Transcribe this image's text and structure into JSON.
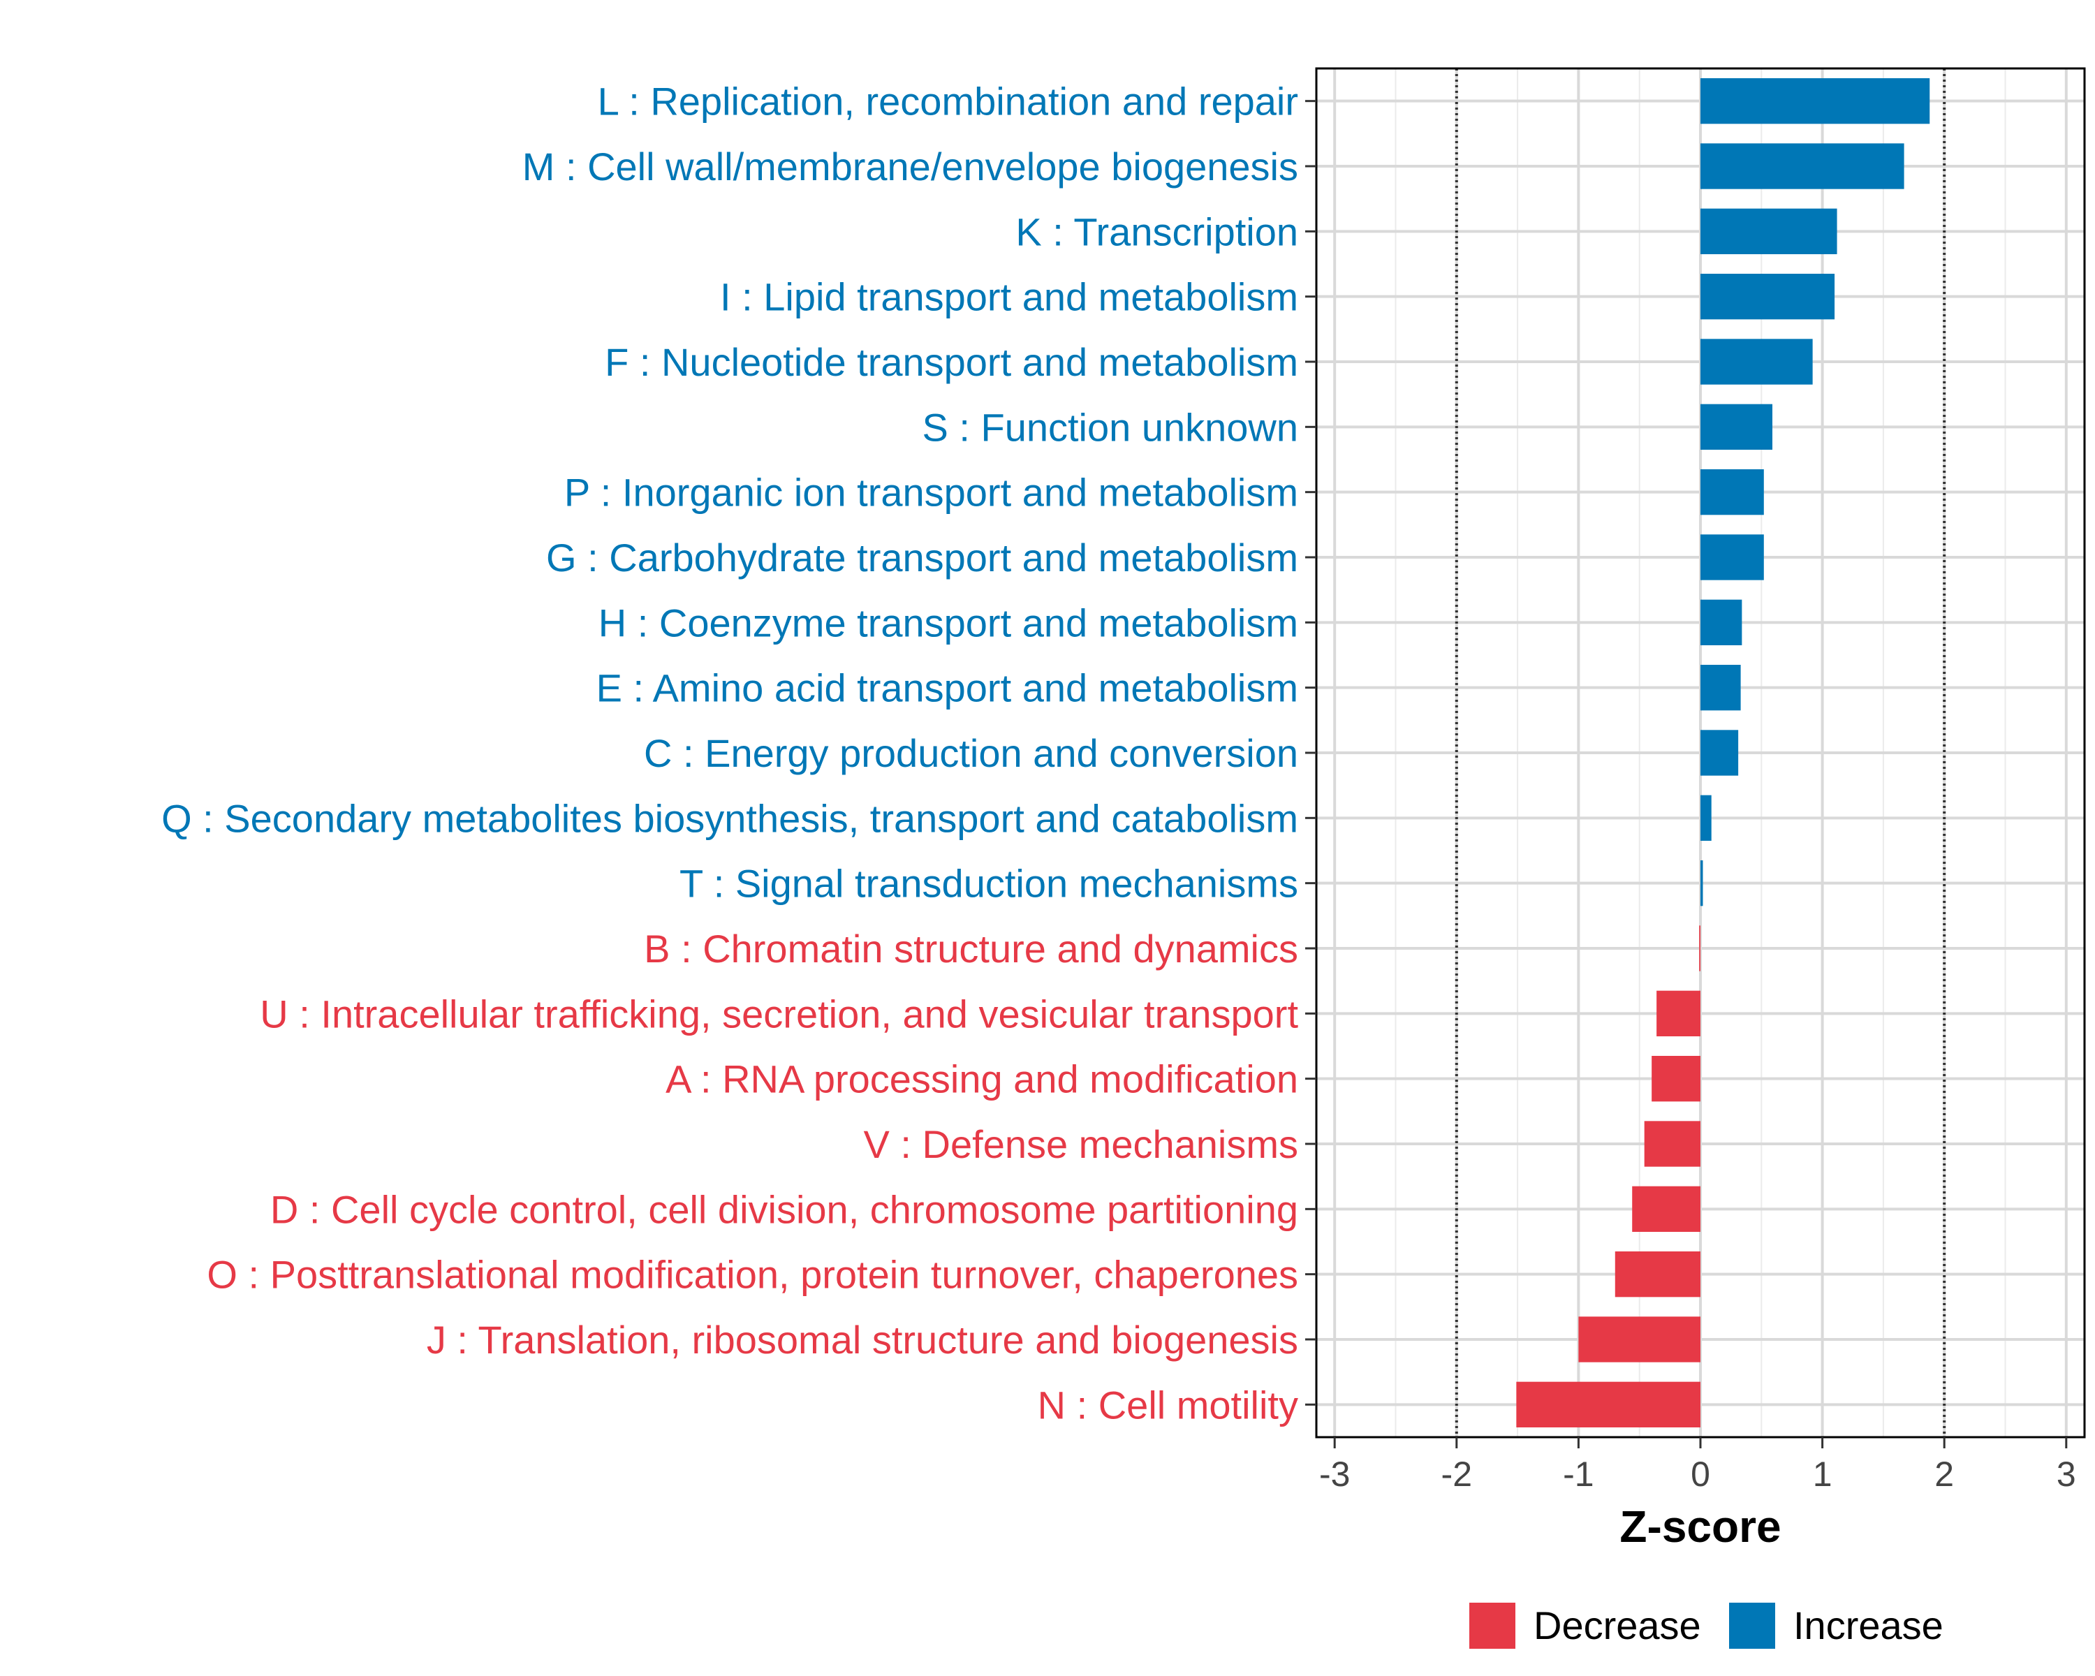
{
  "chart_data": {
    "type": "bar",
    "orientation": "horizontal",
    "categories": [
      "L : Replication, recombination and repair",
      "M : Cell wall/membrane/envelope biogenesis",
      "K : Transcription",
      "I : Lipid transport and metabolism",
      "F : Nucleotide transport and metabolism",
      "S : Function unknown",
      "P : Inorganic ion transport and metabolism",
      "G : Carbohydrate transport and metabolism",
      "H : Coenzyme transport and metabolism",
      "E : Amino acid transport and metabolism",
      "C : Energy production and conversion",
      "Q : Secondary metabolites biosynthesis, transport and catabolism",
      "T : Signal transduction mechanisms",
      "B : Chromatin structure and dynamics",
      "U : Intracellular trafficking, secretion, and vesicular transport",
      "A : RNA processing and modification",
      "V : Defense mechanisms",
      "D : Cell cycle control, cell division, chromosome partitioning",
      "O : Posttranslational modification, protein turnover, chaperones",
      "J : Translation, ribosomal structure and biogenesis",
      "N : Cell motility"
    ],
    "values": [
      1.88,
      1.67,
      1.12,
      1.1,
      0.92,
      0.59,
      0.52,
      0.52,
      0.34,
      0.33,
      0.31,
      0.09,
      0.02,
      -0.01,
      -0.36,
      -0.4,
      -0.46,
      -0.56,
      -0.7,
      -1.0,
      -1.51
    ],
    "groups": [
      "Increase",
      "Increase",
      "Increase",
      "Increase",
      "Increase",
      "Increase",
      "Increase",
      "Increase",
      "Increase",
      "Increase",
      "Increase",
      "Increase",
      "Increase",
      "Decrease",
      "Decrease",
      "Decrease",
      "Decrease",
      "Decrease",
      "Decrease",
      "Decrease",
      "Decrease"
    ],
    "title": "",
    "xlabel": "Z-score",
    "ylabel": "",
    "xlim": [
      -3.15,
      3.15
    ],
    "xticks": [
      "-3",
      "-2",
      "-1",
      "0",
      "1",
      "2",
      "3"
    ],
    "reference_lines": [
      -2,
      2
    ],
    "grid": true,
    "legend": [
      {
        "name": "Decrease",
        "color": "#e63946"
      },
      {
        "name": "Increase",
        "color": "#0077b6"
      }
    ],
    "legend_position": "bottom-right",
    "colors": {
      "Decrease": "#e63946",
      "Increase": "#0077b6"
    }
  }
}
